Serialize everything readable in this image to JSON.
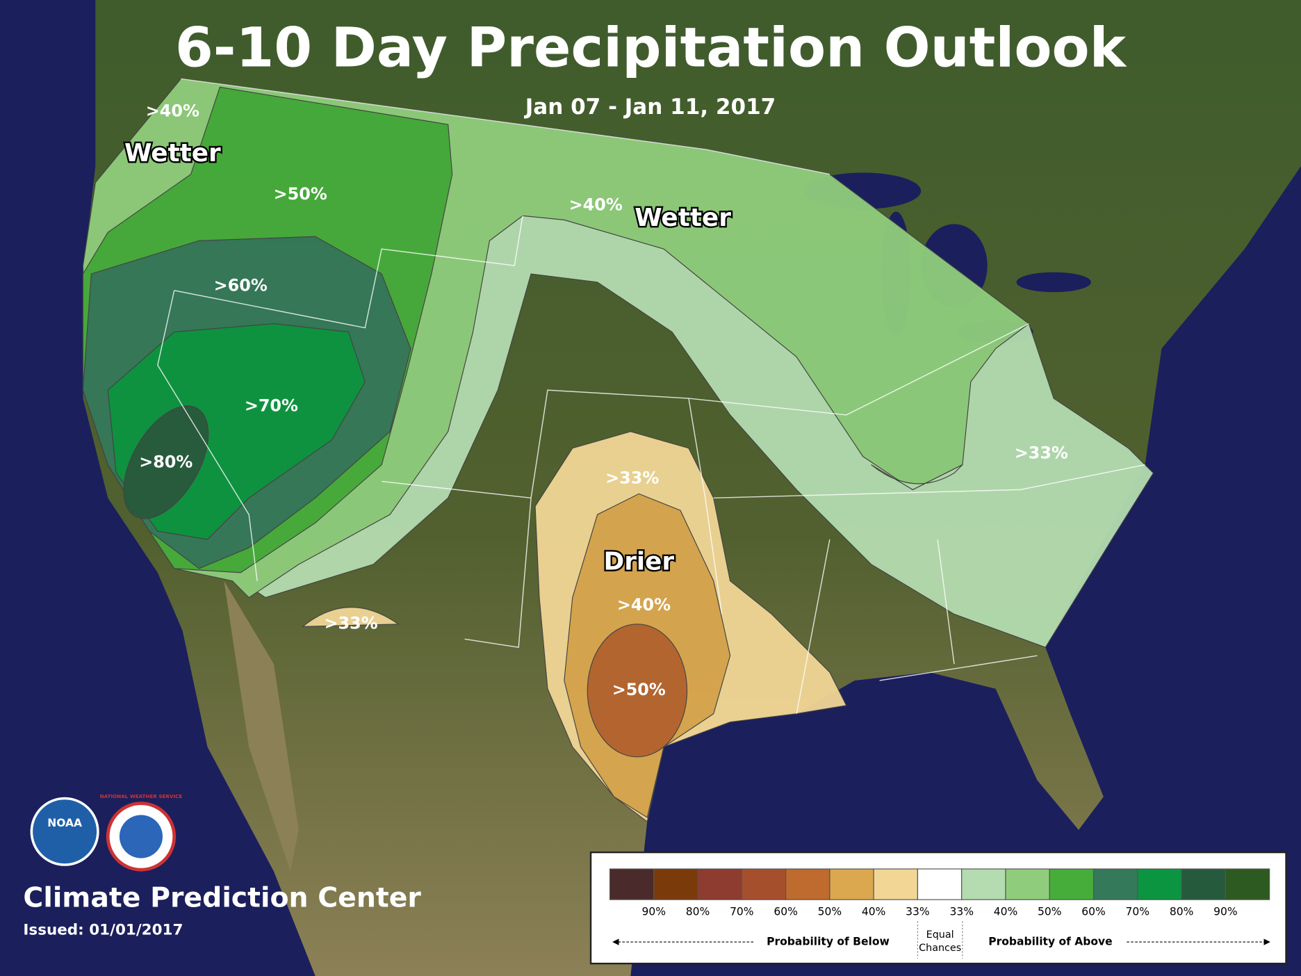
{
  "title": "6-10 Day Precipitation Outlook",
  "subtitle": "Jan 07 - Jan 11, 2017",
  "map_labels": [
    ">40%",
    "Wetter",
    ">50%",
    ">60%",
    ">70%",
    ">80%",
    ">40%",
    "Wetter",
    ">33%",
    ">33%",
    "Drier",
    ">40%",
    ">50%",
    ">33%"
  ],
  "logos": {
    "noaa": "NOAA",
    "nws": "NATIONAL WEATHER SERVICE"
  },
  "agency": "Climate Prediction Center",
  "issued": "Issued: 01/01/2017",
  "legend": {
    "colors": [
      "#4a2a2a",
      "#7a3a0a",
      "#8e3b30",
      "#a64f2c",
      "#bf6a2e",
      "#dba74f",
      "#f1d696",
      "#ffffff",
      "#b4dcb0",
      "#8fcd7c",
      "#46ad3b",
      "#34795a",
      "#0b9540",
      "#265a3d",
      "#2d5a20"
    ],
    "below_levels": [
      "90%",
      "80%",
      "70%",
      "60%",
      "50%",
      "40%",
      "33%"
    ],
    "above_levels": [
      "33%",
      "40%",
      "50%",
      "60%",
      "70%",
      "80%",
      "90%"
    ],
    "below_label": "Probability of Below",
    "equal_label": "Equal Chances",
    "above_label": "Probability of Above"
  }
}
